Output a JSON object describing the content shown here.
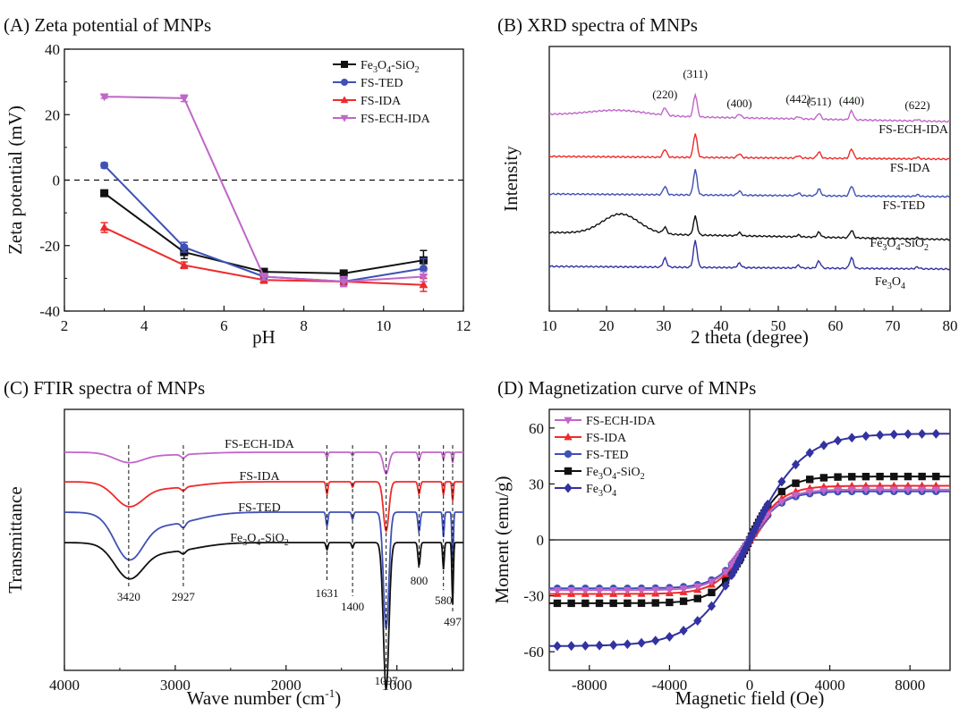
{
  "colors": {
    "black": "#111111",
    "blue": "#3f51b5",
    "red": "#ee2b2b",
    "magenta": "#c066c9",
    "navy": "#3232a0"
  },
  "chart_data": [
    {
      "id": "A",
      "type": "line",
      "title": "(A) Zeta potential of MNPs",
      "xlabel": "pH",
      "ylabel": "Zeta potential (mV)",
      "xlim": [
        2,
        12
      ],
      "ylim": [
        -40,
        40
      ],
      "xticks": [
        2,
        4,
        6,
        8,
        10,
        12
      ],
      "yticks": [
        -40,
        -20,
        0,
        20,
        40
      ],
      "reference_line": 0,
      "legend_position": "top-right",
      "series": [
        {
          "name": "Fe3O4-SiO2",
          "label_html": "Fe<tspan dy='4' font-size='10'>3</tspan><tspan dy='-4'>O</tspan><tspan dy='4' font-size='10'>4</tspan><tspan dy='-4'>-SiO</tspan><tspan dy='4' font-size='10'>2</tspan>",
          "color": "black",
          "marker": "square",
          "x": [
            3,
            5,
            7,
            9,
            11
          ],
          "y": [
            -4,
            -22,
            -28,
            -28.5,
            -24.5
          ],
          "err": [
            0.8,
            2,
            0.8,
            0.6,
            3
          ]
        },
        {
          "name": "FS-TED",
          "color": "blue",
          "marker": "circle",
          "x": [
            3,
            5,
            7,
            9,
            11
          ],
          "y": [
            4.5,
            -20.5,
            -29.5,
            -31,
            -27
          ],
          "err": [
            0.8,
            1.5,
            0.8,
            1,
            3
          ]
        },
        {
          "name": "FS-IDA",
          "color": "red",
          "marker": "triangle-up",
          "x": [
            3,
            5,
            7,
            9,
            11
          ],
          "y": [
            -14.5,
            -26,
            -30.5,
            -31,
            -32
          ],
          "err": [
            1.5,
            1,
            1,
            1.5,
            2
          ]
        },
        {
          "name": "FS-ECH-IDA",
          "color": "magenta",
          "marker": "triangle-down",
          "x": [
            3,
            5,
            7,
            9,
            11
          ],
          "y": [
            25.5,
            25,
            -29.5,
            -31,
            -29.5
          ],
          "err": [
            0.5,
            1,
            1,
            1.5,
            1.5
          ]
        }
      ]
    },
    {
      "id": "B",
      "type": "line",
      "title": "(B) XRD spectra of MNPs",
      "xlabel": "2 theta (degree)",
      "ylabel": "Intensity",
      "xlim": [
        10,
        80
      ],
      "xticks": [
        10,
        20,
        30,
        40,
        50,
        60,
        70,
        80
      ],
      "peaks": [
        {
          "label": "(220)",
          "x": 30.2
        },
        {
          "label": "(311)",
          "x": 35.5
        },
        {
          "label": "(400)",
          "x": 43.2
        },
        {
          "label": "(442)",
          "x": 53.5
        },
        {
          "label": "(511)",
          "x": 57.1
        },
        {
          "label": "(440)",
          "x": 62.8
        },
        {
          "label": "(622)",
          "x": 74.3
        }
      ],
      "series": [
        {
          "name": "FS-ECH-IDA",
          "color": "magenta"
        },
        {
          "name": "FS-IDA",
          "color": "red"
        },
        {
          "name": "FS-TED",
          "color": "blue"
        },
        {
          "name": "Fe3O4-SiO2",
          "label_html": "Fe<tspan dy='4' font-size='10'>3</tspan><tspan dy='-4'>O</tspan><tspan dy='4' font-size='10'>4</tspan><tspan dy='-4'>-SiO</tspan><tspan dy='4' font-size='10'>2</tspan>",
          "color": "black"
        },
        {
          "name": "Fe3O4",
          "label_html": "Fe<tspan dy='4' font-size='10'>3</tspan><tspan dy='-4'>O</tspan><tspan dy='4' font-size='10'>4</tspan>",
          "color": "navy"
        }
      ]
    },
    {
      "id": "C",
      "type": "line",
      "title": "(C) FTIR spectra of MNPs",
      "xlabel": "Wave number (cm-1)",
      "ylabel": "Transmittance",
      "xlim": [
        4000,
        400
      ],
      "xticks": [
        4000,
        3000,
        2000,
        1000
      ],
      "band_labels": [
        3420,
        2927,
        1631,
        1400,
        1097,
        800,
        580,
        497
      ],
      "series": [
        {
          "name": "FS-ECH-IDA",
          "color": "magenta"
        },
        {
          "name": "FS-IDA",
          "color": "red"
        },
        {
          "name": "FS-TED",
          "color": "blue"
        },
        {
          "name": "Fe3O4-SiO2",
          "label_html": "Fe<tspan dy='4' font-size='10'>3</tspan><tspan dy='-4'>O</tspan><tspan dy='4' font-size='10'>4</tspan><tspan dy='-4'>-SiO</tspan><tspan dy='4' font-size='10'>2</tspan>",
          "color": "black"
        }
      ]
    },
    {
      "id": "D",
      "type": "line",
      "title": "(D) Magnetization curve of MNPs",
      "xlabel": "Magnetic field (Oe)",
      "ylabel": "Moment (emu/g)",
      "xlim": [
        -10000,
        10000
      ],
      "ylim": [
        -70,
        70
      ],
      "xticks": [
        -8000,
        -4000,
        0,
        4000,
        8000
      ],
      "yticks": [
        -60,
        -30,
        0,
        30,
        60
      ],
      "legend_position": "top-left",
      "series": [
        {
          "name": "FS-ECH-IDA",
          "color": "magenta",
          "marker": "triangle-down",
          "ms": 27
        },
        {
          "name": "FS-IDA",
          "color": "red",
          "marker": "triangle-up",
          "ms": 29
        },
        {
          "name": "FS-TED",
          "color": "blue",
          "marker": "circle",
          "ms": 26
        },
        {
          "name": "Fe3O4-SiO2",
          "label_html": "Fe<tspan dy='4' font-size='10'>3</tspan><tspan dy='-4'>O</tspan><tspan dy='4' font-size='10'>4</tspan><tspan dy='-4'>-SiO</tspan><tspan dy='4' font-size='10'>2</tspan>",
          "color": "black",
          "marker": "square",
          "ms": 34
        },
        {
          "name": "Fe3O4",
          "label_html": "Fe<tspan dy='4' font-size='10'>3</tspan><tspan dy='-4'>O</tspan><tspan dy='4' font-size='10'>4</tspan>",
          "color": "navy",
          "marker": "diamond",
          "ms": 57
        }
      ]
    }
  ]
}
